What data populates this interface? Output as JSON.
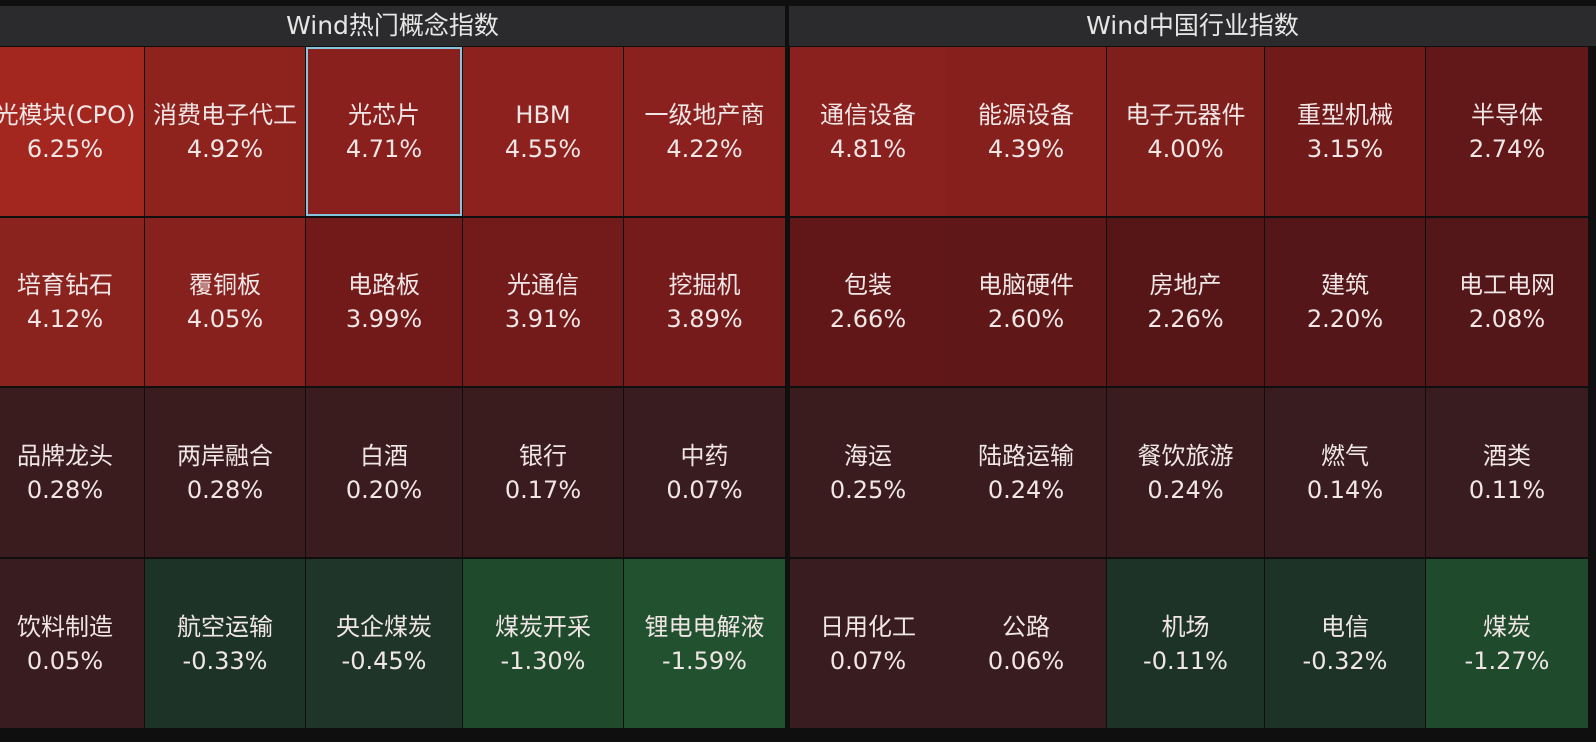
{
  "panels": [
    {
      "title": "Wind热门概念指数",
      "tiles": [
        {
          "name": "光模块(CPO)",
          "change": "6.25%",
          "color": "#a3261f"
        },
        {
          "name": "消费电子代工",
          "change": "4.92%",
          "color": "#8e231e"
        },
        {
          "name": "光芯片",
          "change": "4.71%",
          "color": "#8a201d",
          "selected": true
        },
        {
          "name": "HBM",
          "change": "4.55%",
          "color": "#8d211e"
        },
        {
          "name": "一级地产商",
          "change": "4.22%",
          "color": "#8a211e"
        },
        {
          "name": "培育钻石",
          "change": "4.12%",
          "color": "#8a221e"
        },
        {
          "name": "覆铜板",
          "change": "4.05%",
          "color": "#86211d"
        },
        {
          "name": "电路板",
          "change": "3.99%",
          "color": "#72191a"
        },
        {
          "name": "光通信",
          "change": "3.91%",
          "color": "#731a1a"
        },
        {
          "name": "挖掘机",
          "change": "3.89%",
          "color": "#761b1b"
        },
        {
          "name": "品牌龙头",
          "change": "0.28%",
          "color": "#3a1c1f"
        },
        {
          "name": "两岸融合",
          "change": "0.28%",
          "color": "#3a1c1f"
        },
        {
          "name": "白酒",
          "change": "0.20%",
          "color": "#3a1c1f"
        },
        {
          "name": "银行",
          "change": "0.17%",
          "color": "#3a1c1f"
        },
        {
          "name": "中药",
          "change": "0.07%",
          "color": "#391c1f"
        },
        {
          "name": "饮料制造",
          "change": "0.05%",
          "color": "#391c1f"
        },
        {
          "name": "航空运输",
          "change": "-0.33%",
          "color": "#1e3328"
        },
        {
          "name": "央企煤炭",
          "change": "-0.45%",
          "color": "#1f3529"
        },
        {
          "name": "煤炭开采",
          "change": "-1.30%",
          "color": "#1f4a2b"
        },
        {
          "name": "锂电电解液",
          "change": "-1.59%",
          "color": "#225130"
        }
      ]
    },
    {
      "title": "Wind中国行业指数",
      "tiles": [
        {
          "name": "通信设备",
          "change": "4.81%",
          "color": "#8b211e"
        },
        {
          "name": "能源设备",
          "change": "4.39%",
          "color": "#86201d"
        },
        {
          "name": "电子元器件",
          "change": "4.00%",
          "color": "#7f1f1c"
        },
        {
          "name": "重型机械",
          "change": "3.15%",
          "color": "#701a1a"
        },
        {
          "name": "半导体",
          "change": "2.74%",
          "color": "#621818"
        },
        {
          "name": "包装",
          "change": "2.66%",
          "color": "#611718"
        },
        {
          "name": "电脑硬件",
          "change": "2.60%",
          "color": "#5f1718"
        },
        {
          "name": "房地产",
          "change": "2.26%",
          "color": "#561618"
        },
        {
          "name": "建筑",
          "change": "2.20%",
          "color": "#551619"
        },
        {
          "name": "电工电网",
          "change": "2.08%",
          "color": "#531619"
        },
        {
          "name": "海运",
          "change": "0.25%",
          "color": "#3a1c1f"
        },
        {
          "name": "陆路运输",
          "change": "0.24%",
          "color": "#3a1c1f"
        },
        {
          "name": "餐饮旅游",
          "change": "0.24%",
          "color": "#3a1c1f"
        },
        {
          "name": "燃气",
          "change": "0.14%",
          "color": "#391c1f"
        },
        {
          "name": "酒类",
          "change": "0.11%",
          "color": "#391c1f"
        },
        {
          "name": "日用化工",
          "change": "0.07%",
          "color": "#391c1f"
        },
        {
          "name": "公路",
          "change": "0.06%",
          "color": "#381c1f"
        },
        {
          "name": "机场",
          "change": "-0.11%",
          "color": "#1e3327"
        },
        {
          "name": "电信",
          "change": "-0.32%",
          "color": "#1e3328"
        },
        {
          "name": "煤炭",
          "change": "-1.27%",
          "color": "#1f4a2b"
        }
      ]
    }
  ]
}
